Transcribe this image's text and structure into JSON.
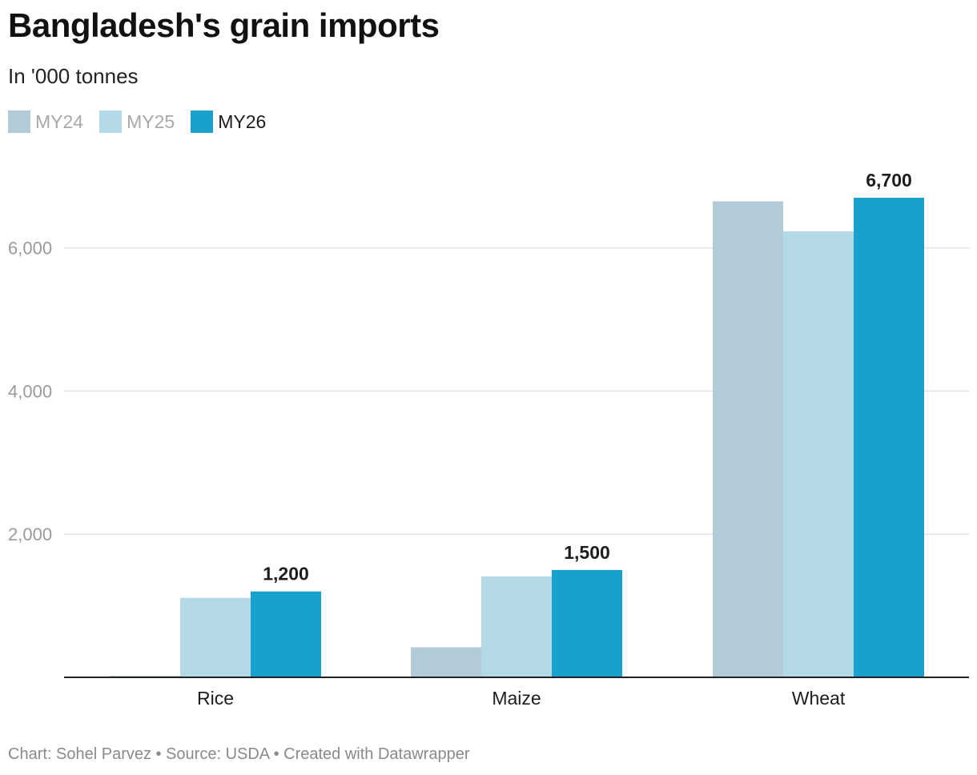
{
  "title": "Bangladesh's grain imports",
  "subtitle": "In '000 tonnes",
  "footer": "Chart: Sohel Parvez • Source: USDA • Created with Datawrapper",
  "legend": [
    {
      "label": "MY24",
      "color": "#b3cbd6",
      "text_color": "#a9a9a9"
    },
    {
      "label": "MY25",
      "color": "#b3d8e6",
      "text_color": "#a9a9a9"
    },
    {
      "label": "MY26",
      "color": "#18a1cd",
      "text_color": "#1d1d1d"
    }
  ],
  "chart_data": {
    "type": "bar",
    "title": "Bangladesh's grain imports",
    "subtitle": "In '000 tonnes",
    "categories": [
      "Rice",
      "Maize",
      "Wheat"
    ],
    "series": [
      {
        "name": "MY24",
        "values": [
          20,
          420,
          6650
        ],
        "color": "#b3cbd6"
      },
      {
        "name": "MY25",
        "values": [
          1110,
          1410,
          6230
        ],
        "color": "#b3d8e6"
      },
      {
        "name": "MY26",
        "values": [
          1200,
          1500,
          6700
        ],
        "color": "#18a1cd"
      }
    ],
    "data_labels": [
      "1,200",
      "1,500",
      "6,700"
    ],
    "yticks": [
      2000,
      4000,
      6000
    ],
    "ytick_labels": [
      "2,000",
      "4,000",
      "6,000"
    ],
    "ylim": [
      0,
      6700
    ],
    "grid": true,
    "legend_position": "top-left"
  }
}
